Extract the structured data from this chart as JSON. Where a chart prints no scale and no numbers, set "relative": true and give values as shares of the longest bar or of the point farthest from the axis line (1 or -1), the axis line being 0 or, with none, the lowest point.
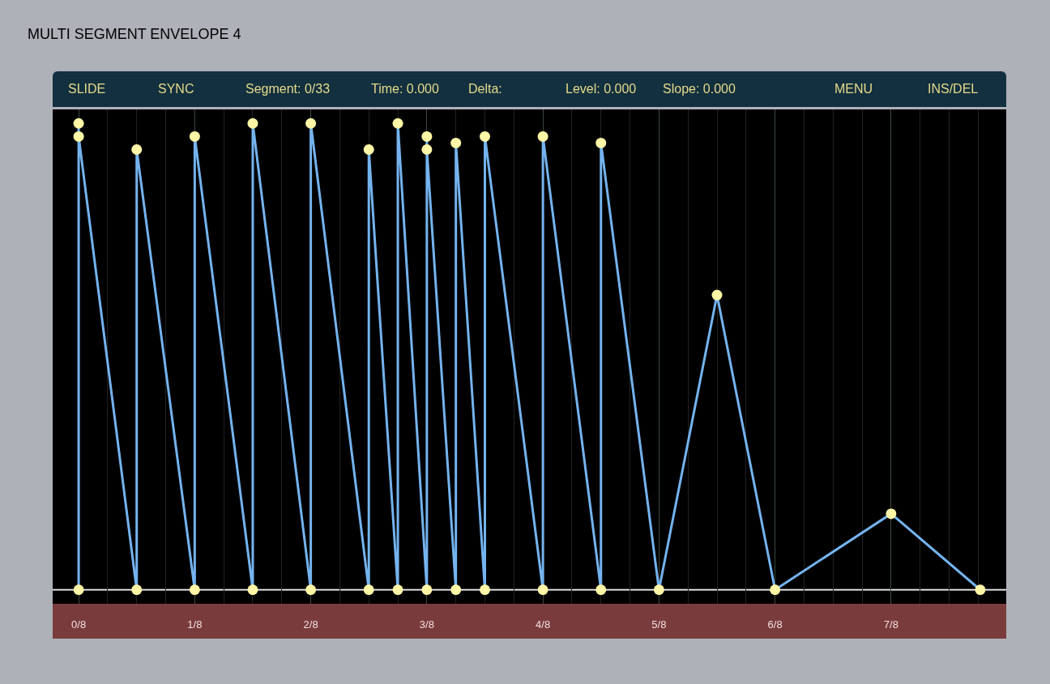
{
  "chart_data": {
    "type": "line",
    "title": "MULTI SEGMENT ENVELOPE 4",
    "annotations": [
      "SLIDE",
      "SYNC",
      "Segment: 0/33",
      "Time: 0.000",
      "Delta:",
      "Level: 0.000",
      "Slope: 0.000",
      "MENU",
      "INS/DEL"
    ],
    "relative": true,
    "series": [
      {
        "color": "#74b3ee",
        "x": [
          0,
          0,
          0,
          0.0625,
          0.0625,
          0.125,
          0.125,
          0.1875,
          0.1875,
          0.25,
          0.25,
          0.3125,
          0.3125,
          0.34375,
          0.34375,
          0.375,
          0.375,
          0.375,
          0.40625,
          0.40625,
          0.4375,
          0.4375,
          0.5,
          0.5,
          0.5625,
          0.5625,
          0.625,
          0.6875,
          0.75,
          0.875,
          0.971
        ],
        "values": [
          0,
          1,
          0.972,
          0,
          0.944,
          0,
          0.972,
          0,
          1,
          0,
          1,
          0,
          0.944,
          0,
          1,
          0,
          0.972,
          0.944,
          0,
          0.958,
          0,
          0.972,
          0,
          0.972,
          0,
          0.958,
          0,
          0.632,
          0,
          0.163,
          0
        ]
      }
    ],
    "xlim": [
      -0.028,
      0.999
    ],
    "xticks": [
      {
        "value": 0,
        "label": "0/8"
      },
      {
        "value": 0.125,
        "label": "1/8"
      },
      {
        "value": 0.25,
        "label": "2/8"
      },
      {
        "value": 0.375,
        "label": "3/8"
      },
      {
        "value": 0.5,
        "label": "4/8"
      },
      {
        "value": 0.625,
        "label": "5/8"
      },
      {
        "value": 0.75,
        "label": "6/8"
      },
      {
        "value": 0.875,
        "label": "7/8"
      }
    ],
    "grid": "x",
    "marker": "circle",
    "line_style": "solid"
  }
}
